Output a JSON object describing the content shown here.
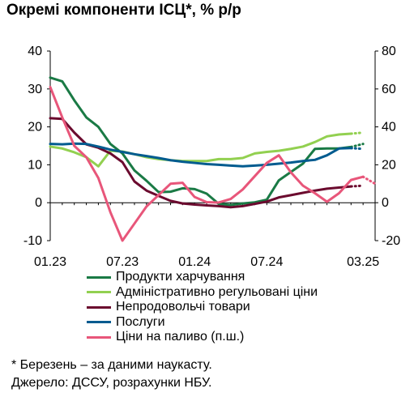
{
  "chart_data": {
    "type": "line",
    "title": "Окремі компоненти ІСЦ*, % р/р",
    "x_ticks": [
      "01.23",
      "07.23",
      "01.24",
      "07.24",
      "03.25"
    ],
    "x_months": [
      "2023-01",
      "2023-02",
      "2023-03",
      "2023-04",
      "2023-05",
      "2023-06",
      "2023-07",
      "2023-08",
      "2023-09",
      "2023-10",
      "2023-11",
      "2023-12",
      "2024-01",
      "2024-02",
      "2024-03",
      "2024-04",
      "2024-05",
      "2024-06",
      "2024-07",
      "2024-08",
      "2024-09",
      "2024-10",
      "2024-11",
      "2024-12",
      "2025-01",
      "2025-02",
      "2025-03"
    ],
    "y_left": {
      "min": -10,
      "max": 40,
      "ticks": [
        -10,
        0,
        10,
        20,
        30,
        40
      ]
    },
    "y_right": {
      "min": -20,
      "max": 80,
      "ticks": [
        -20,
        0,
        20,
        40,
        60,
        80
      ]
    },
    "grid": false,
    "legend_position": "bottom",
    "series": [
      {
        "name": "Продукти харчування",
        "color": "#1a7a45",
        "axis": "left",
        "values": [
          33,
          32,
          27,
          22.5,
          20,
          15.5,
          13,
          8.5,
          5.8,
          2.8,
          2.9,
          3.8,
          3.6,
          2.4,
          -0.3,
          -0.6,
          -0.2,
          0.1,
          0.8,
          5.9,
          8.1,
          10.3,
          14.2,
          14.3,
          14.3,
          14.7,
          15.5
        ],
        "estimate_from_index": 25
      },
      {
        "name": "Адміністративно регульовані ціни",
        "color": "#92d050",
        "axis": "left",
        "values": [
          14.8,
          14.3,
          13.3,
          12,
          9.6,
          13.7,
          13.5,
          12.8,
          12,
          11.5,
          11.2,
          11,
          11,
          11,
          11.5,
          11.5,
          11.8,
          13,
          13.4,
          13.7,
          14.2,
          14.8,
          16,
          17.5,
          18,
          18.2,
          18.5
        ],
        "estimate_from_index": 25
      },
      {
        "name": "Непродовольчі товари",
        "color": "#6b0a2e",
        "axis": "left",
        "values": [
          22.3,
          22.1,
          18.5,
          15.4,
          14.5,
          13,
          10.7,
          5.6,
          3.2,
          1.8,
          0.5,
          -0.2,
          -0.5,
          -0.7,
          -0.9,
          -1.2,
          -0.9,
          -0.3,
          0.3,
          1.4,
          2,
          2.6,
          3.2,
          3.7,
          4,
          4.3,
          4.5
        ],
        "estimate_from_index": 25
      },
      {
        "name": "Послуги",
        "color": "#005b8f",
        "axis": "left",
        "values": [
          15.5,
          15.4,
          15.6,
          15.5,
          14.8,
          14,
          13.4,
          12.8,
          12.3,
          11.8,
          11.2,
          10.8,
          10.5,
          10.2,
          10,
          9.8,
          9.6,
          9.8,
          10,
          10.3,
          10.6,
          11,
          11.3,
          12.5,
          14.3,
          14.4,
          14.2
        ],
        "estimate_from_index": 25
      },
      {
        "name": "Ціни на паливо (п.ш.)",
        "color": "#e8567a",
        "axis": "right",
        "values": [
          61,
          45,
          30,
          24,
          13,
          -5,
          -20,
          -11,
          -2,
          4,
          10,
          10.5,
          3,
          0.3,
          0.1,
          2,
          7,
          14,
          21,
          25,
          16,
          9,
          5,
          0.5,
          5,
          12,
          13.7,
          10
        ],
        "x_values": [
          0,
          1,
          2,
          3,
          4,
          5,
          6,
          7,
          8,
          9,
          10,
          11,
          12,
          13,
          14,
          15,
          16,
          17,
          18,
          19,
          20,
          21,
          22,
          23,
          24,
          25,
          26,
          27
        ],
        "estimate_from_index": 26
      }
    ]
  },
  "footnote": {
    "line1": "* Березень – за даними наукасту.",
    "line2": "Джерело: ДССУ, розрахунки НБУ."
  }
}
